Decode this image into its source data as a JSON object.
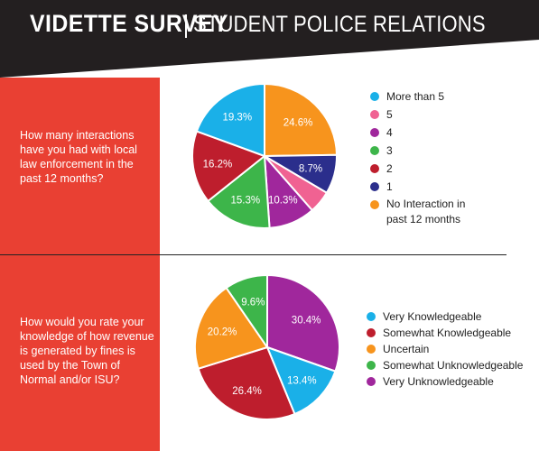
{
  "header": {
    "title": "VIDETTE SURVEY",
    "subtitle": "STUDENT POLICE RELATIONS"
  },
  "colors": {
    "header_bg": "#231f20",
    "red_band": "#e94033",
    "cyan": "#1ab0e8",
    "pink": "#f06292",
    "purple": "#a0279c",
    "green": "#3db54a",
    "dark_red": "#be1e2d",
    "orange": "#f7941d",
    "navy": "#2b2e8c"
  },
  "questions": {
    "q1": "How many interactions have you had with local law enforcement in the past 12 months?",
    "q2": "How would you rate your knowledge of how revenue is generated by fines is used by the Town of Normal and/or ISU?"
  },
  "chart_data": [
    {
      "type": "pie",
      "slices": [
        {
          "label": "No Interaction in past 12 months",
          "value": 24.6,
          "display": "24.6%",
          "color": "#f7941d"
        },
        {
          "label": "1",
          "value": 8.7,
          "display": "8.7%",
          "color": "#2b2e8c"
        },
        {
          "label": "5",
          "value": 5.0,
          "display": "",
          "color": "#f06292"
        },
        {
          "label": "4",
          "value": 10.3,
          "display": "10.3%",
          "color": "#a0279c"
        },
        {
          "label": "3",
          "value": 15.3,
          "display": "15.3%",
          "color": "#3db54a"
        },
        {
          "label": "2",
          "value": 16.2,
          "display": "16.2%",
          "color": "#be1e2d"
        },
        {
          "label": "More than 5",
          "value": 19.3,
          "display": "19.3%",
          "color": "#1ab0e8"
        }
      ],
      "legend": [
        {
          "label": "More than 5",
          "color": "#1ab0e8"
        },
        {
          "label": "5",
          "color": "#f06292"
        },
        {
          "label": "4",
          "color": "#a0279c"
        },
        {
          "label": "3",
          "color": "#3db54a"
        },
        {
          "label": "2",
          "color": "#be1e2d"
        },
        {
          "label": "1",
          "color": "#2b2e8c"
        },
        {
          "label": "No Interaction in past 12 months",
          "color": "#f7941d"
        }
      ],
      "legend_position": "right"
    },
    {
      "type": "pie",
      "slices": [
        {
          "label": "Very Unknowledgeable",
          "value": 30.4,
          "display": "30.4%",
          "color": "#a0279c"
        },
        {
          "label": "Very Knowledgeable",
          "value": 13.4,
          "display": "13.4%",
          "color": "#1ab0e8"
        },
        {
          "label": "Somewhat Knowledgeable",
          "value": 26.4,
          "display": "26.4%",
          "color": "#be1e2d"
        },
        {
          "label": "Uncertain",
          "value": 20.2,
          "display": "20.2%",
          "color": "#f7941d"
        },
        {
          "label": "Somewhat Unknowledgeable",
          "value": 9.6,
          "display": "9.6%",
          "color": "#3db54a"
        }
      ],
      "legend": [
        {
          "label": "Very Knowledgeable",
          "color": "#1ab0e8"
        },
        {
          "label": "Somewhat Knowledgeable",
          "color": "#be1e2d"
        },
        {
          "label": "Uncertain",
          "color": "#f7941d"
        },
        {
          "label": "Somewhat Unknowledgeable",
          "color": "#3db54a"
        },
        {
          "label": "Very Unknowledgeable",
          "color": "#a0279c"
        }
      ],
      "legend_position": "right"
    }
  ]
}
